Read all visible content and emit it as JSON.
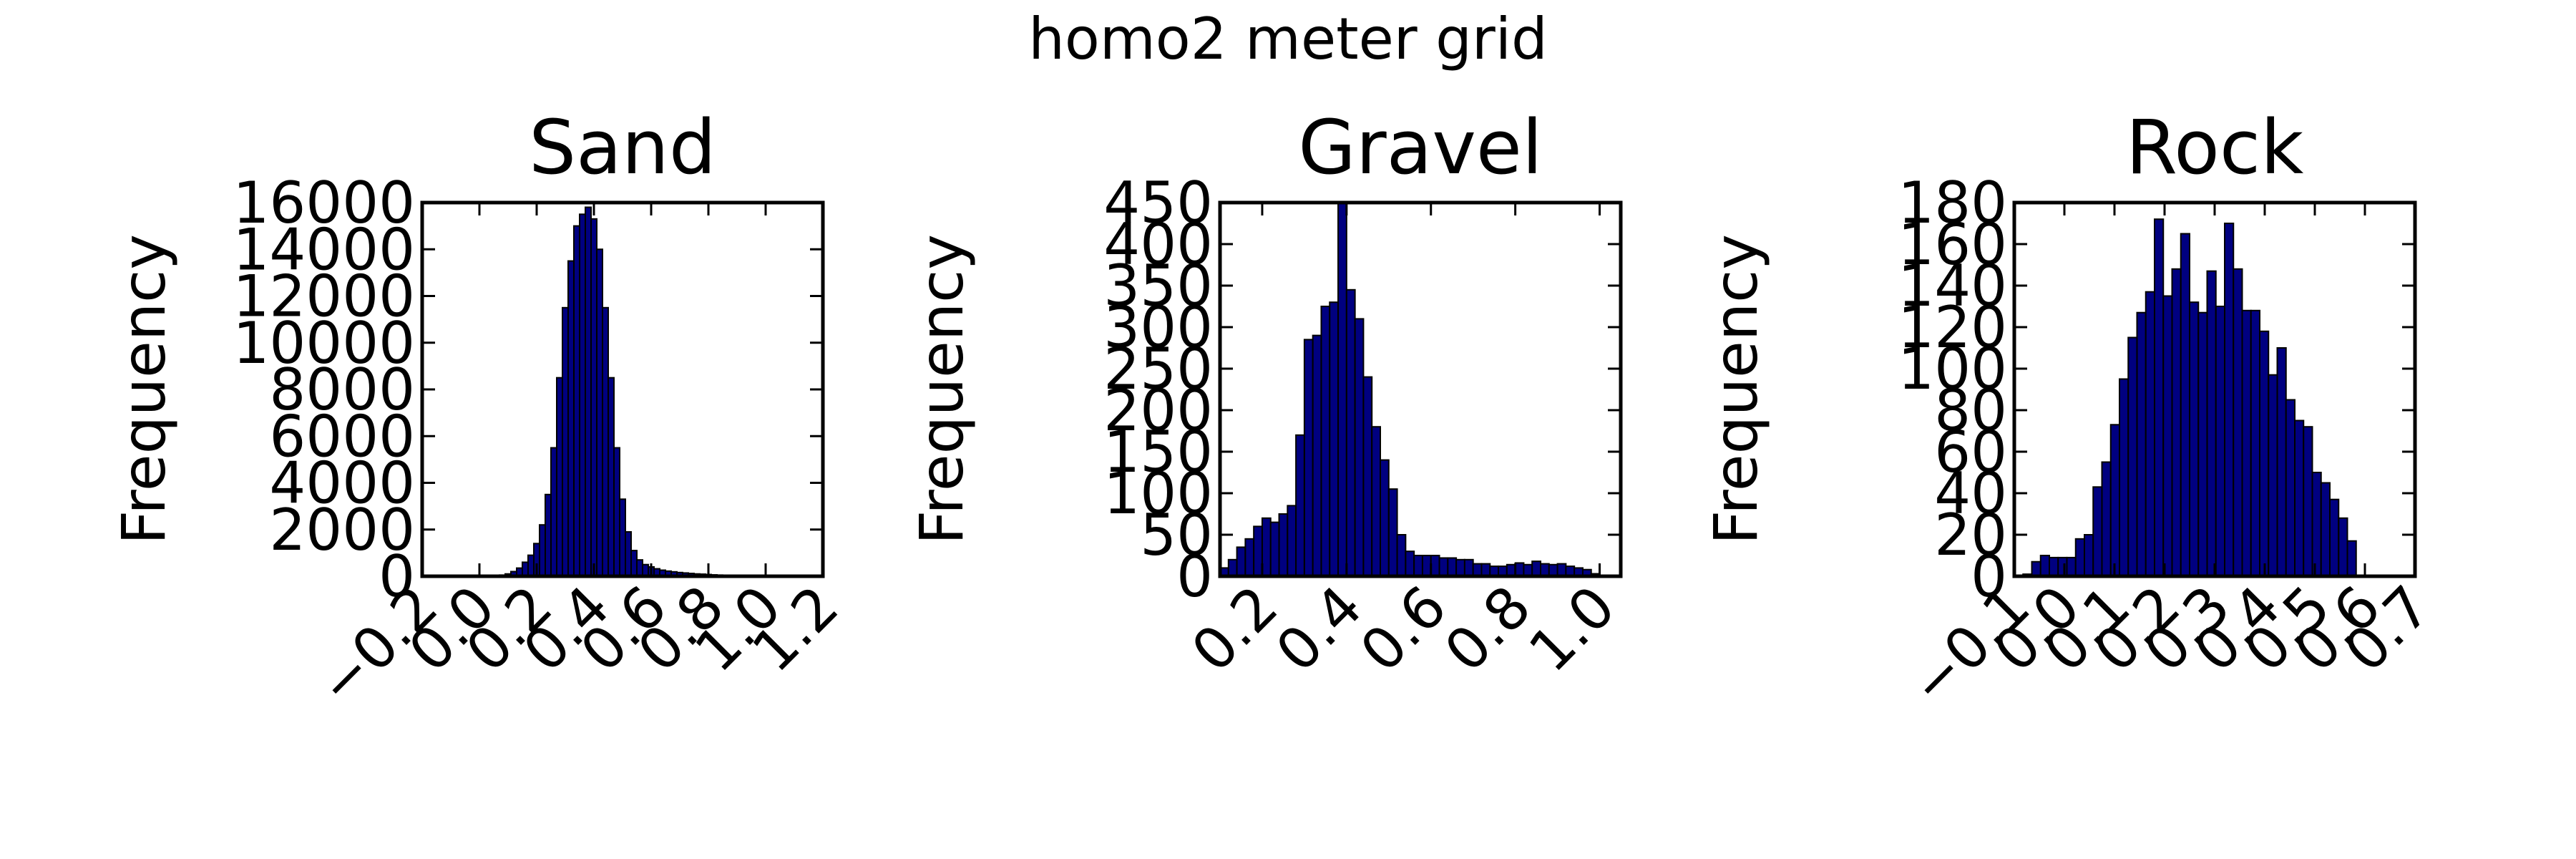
{
  "figure": {
    "suptitle": "homo2 meter grid"
  },
  "colors": {
    "bar_fill": "#000080",
    "bar_edge": "#000000",
    "axes": "#000000",
    "background": "#ffffff"
  },
  "chart_data": [
    {
      "type": "bar",
      "title": "Sand",
      "xlabel": "",
      "ylabel": "Frequency",
      "xlim": [
        -0.2,
        1.2
      ],
      "ylim": [
        0,
        16000
      ],
      "xticks": [
        -0.2,
        0.0,
        0.2,
        0.4,
        0.6,
        0.8,
        1.0,
        1.2
      ],
      "xtick_labels": [
        "−0.2",
        "0.0",
        "0.2",
        "0.4",
        "0.6",
        "0.8",
        "1.0",
        "1.2"
      ],
      "yticks": [
        0,
        2000,
        4000,
        6000,
        8000,
        10000,
        12000,
        14000,
        16000
      ],
      "ytick_labels": [
        "0",
        "2000",
        "4000",
        "6000",
        "8000",
        "10000",
        "12000",
        "14000",
        "16000"
      ],
      "bin_edges": [
        0.05,
        0.07,
        0.09,
        0.11,
        0.13,
        0.15,
        0.17,
        0.19,
        0.21,
        0.23,
        0.25,
        0.27,
        0.29,
        0.31,
        0.33,
        0.35,
        0.37,
        0.39,
        0.41,
        0.43,
        0.45,
        0.47,
        0.49,
        0.51,
        0.53,
        0.55,
        0.57,
        0.59,
        0.61,
        0.63,
        0.65,
        0.67,
        0.69,
        0.71,
        0.73,
        0.75,
        0.77,
        0.79,
        0.81,
        0.83,
        0.85,
        0.87,
        0.89,
        0.91,
        0.93
      ],
      "counts": [
        20,
        50,
        100,
        200,
        350,
        600,
        900,
        1400,
        2200,
        3500,
        5500,
        8500,
        11500,
        13500,
        15000,
        15500,
        15800,
        15300,
        14000,
        11500,
        8500,
        5500,
        3300,
        1900,
        1100,
        700,
        500,
        400,
        320,
        260,
        220,
        190,
        160,
        140,
        120,
        100,
        90,
        75,
        60,
        50,
        40,
        30,
        25,
        20
      ]
    },
    {
      "type": "bar",
      "title": "Gravel",
      "xlabel": "",
      "ylabel": "Frequency",
      "xlim": [
        0.1,
        1.05
      ],
      "ylim": [
        0,
        450
      ],
      "xticks": [
        0.2,
        0.4,
        0.6,
        0.8,
        1.0
      ],
      "xtick_labels": [
        "0.2",
        "0.4",
        "0.6",
        "0.8",
        "1.0"
      ],
      "yticks": [
        0,
        50,
        100,
        150,
        200,
        250,
        300,
        350,
        400,
        450
      ],
      "ytick_labels": [
        "0",
        "50",
        "100",
        "150",
        "200",
        "250",
        "300",
        "350",
        "400",
        "450"
      ],
      "bin_edges": [
        0.1,
        0.12,
        0.14,
        0.16,
        0.18,
        0.2,
        0.22,
        0.24,
        0.26,
        0.28,
        0.3,
        0.32,
        0.34,
        0.36,
        0.38,
        0.4,
        0.42,
        0.44,
        0.46,
        0.48,
        0.5,
        0.52,
        0.54,
        0.56,
        0.58,
        0.6,
        0.62,
        0.64,
        0.66,
        0.68,
        0.7,
        0.72,
        0.74,
        0.76,
        0.78,
        0.8,
        0.82,
        0.84,
        0.86,
        0.88,
        0.9,
        0.92,
        0.94,
        0.96,
        0.98,
        1.0
      ],
      "counts": [
        10,
        20,
        35,
        45,
        60,
        70,
        65,
        75,
        85,
        170,
        285,
        290,
        325,
        330,
        450,
        345,
        310,
        240,
        180,
        140,
        105,
        50,
        30,
        25,
        25,
        25,
        22,
        22,
        20,
        20,
        15,
        15,
        12,
        12,
        14,
        16,
        14,
        18,
        15,
        14,
        15,
        12,
        10,
        8,
        3
      ]
    },
    {
      "type": "bar",
      "title": "Rock",
      "xlabel": "",
      "ylabel": "Frequency",
      "xlim": [
        -0.1,
        0.7
      ],
      "ylim": [
        0,
        180
      ],
      "xticks": [
        -0.1,
        0.0,
        0.1,
        0.2,
        0.3,
        0.4,
        0.5,
        0.6,
        0.7
      ],
      "xtick_labels": [
        "−0.1",
        "0.0",
        "0.1",
        "0.2",
        "0.3",
        "0.4",
        "0.5",
        "0.6",
        "0.7"
      ],
      "yticks": [
        0,
        20,
        40,
        60,
        80,
        100,
        120,
        140,
        160,
        180
      ],
      "ytick_labels": [
        "0",
        "20",
        "40",
        "60",
        "80",
        "100",
        "120",
        "140",
        "160",
        "180"
      ],
      "bin_edges": [
        -0.1,
        -0.0825,
        -0.065,
        -0.0475,
        -0.03,
        -0.0125,
        0.005,
        0.0225,
        0.04,
        0.0575,
        0.075,
        0.0925,
        0.11,
        0.1275,
        0.145,
        0.1625,
        0.18,
        0.1975,
        0.215,
        0.2325,
        0.25,
        0.2675,
        0.285,
        0.3025,
        0.32,
        0.3375,
        0.355,
        0.3725,
        0.39,
        0.4075,
        0.425,
        0.4425,
        0.46,
        0.4775,
        0.495,
        0.5125,
        0.53,
        0.5475,
        0.565,
        0.5825,
        0.6
      ],
      "counts": [
        0,
        1,
        7,
        10,
        9,
        9,
        9,
        18,
        20,
        43,
        55,
        73,
        95,
        115,
        127,
        137,
        172,
        135,
        148,
        165,
        132,
        127,
        147,
        130,
        170,
        148,
        128,
        128,
        118,
        97,
        110,
        85,
        75,
        72,
        50,
        45,
        37,
        28,
        17,
        0
      ]
    }
  ]
}
